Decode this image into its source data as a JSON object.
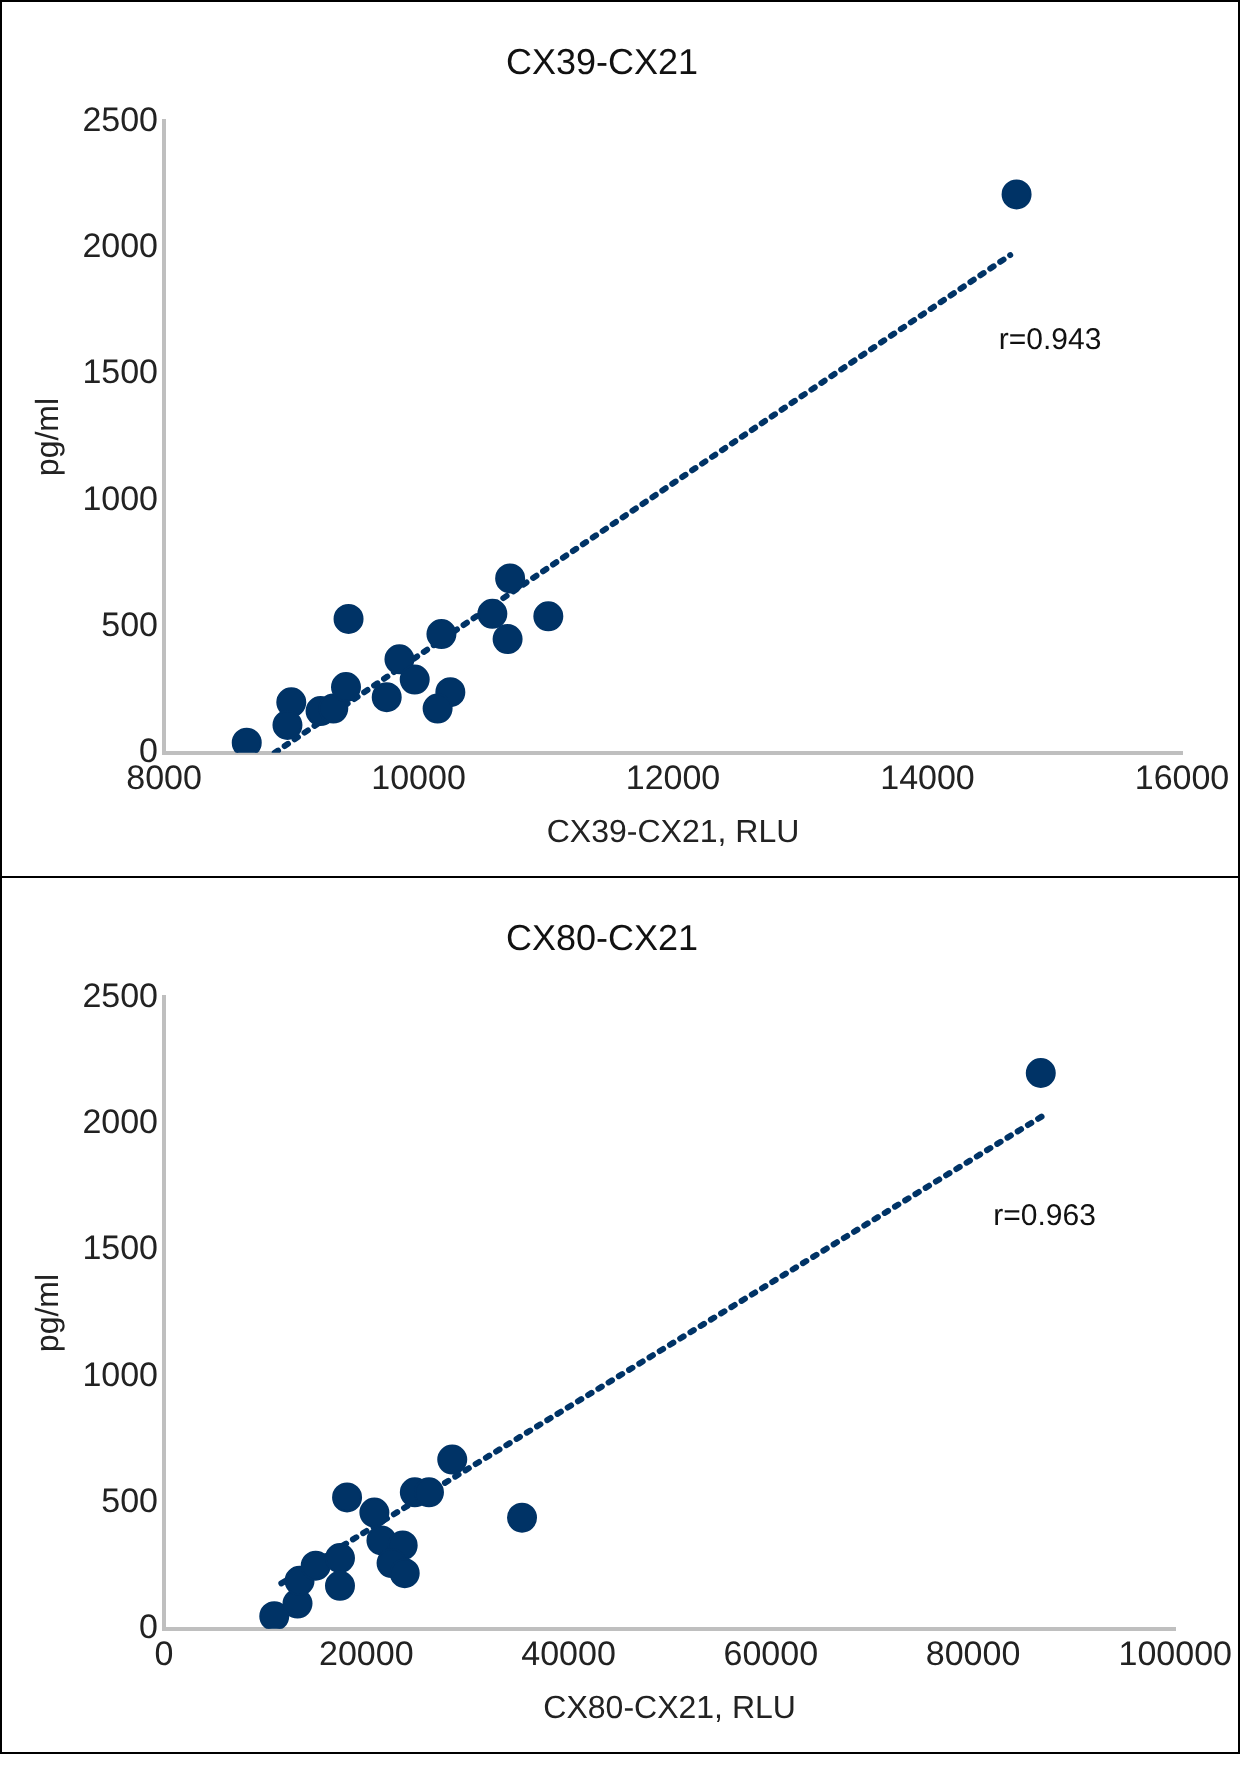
{
  "chart_data": [
    {
      "type": "scatter",
      "title": "CX39-CX21",
      "xlabel": "CX39-CX21, RLU",
      "ylabel": "pg/ml",
      "xlim": [
        8000,
        16000
      ],
      "xticks": [
        8000,
        10000,
        12000,
        14000,
        16000
      ],
      "ylim": [
        0,
        2500
      ],
      "yticks": [
        0,
        500,
        1000,
        1500,
        2000,
        2500
      ],
      "grid": false,
      "legend": false,
      "marker": "circle",
      "annotations": [
        "r=0.943"
      ],
      "series": [
        {
          "color": "#003366",
          "x": [
            8650,
            9000,
            8970,
            9230,
            9330,
            9430,
            9450,
            9800,
            9850,
            9750,
            9970,
            10180,
            10250,
            10150,
            10580,
            10720,
            10700,
            11020,
            14700
          ],
          "values": [
            40,
            200,
            110,
            165,
            175,
            260,
            530,
            null,
            370,
            220,
            290,
            470,
            240,
            175,
            550,
            690,
            450,
            540,
            2210
          ]
        },
        {
          "type": "line",
          "color": "#003366",
          "line_style": "dotted",
          "marker": "none",
          "x": [
            8870,
            14650
          ],
          "values": [
            0,
            1970
          ]
        }
      ]
    },
    {
      "type": "scatter",
      "title": "CX80-CX21",
      "xlabel": "CX80-CX21, RLU",
      "ylabel": "pg/ml",
      "xlim": [
        0,
        100000
      ],
      "xticks": [
        0,
        20000,
        40000,
        60000,
        80000,
        100000
      ],
      "ylim": [
        0,
        2500
      ],
      "yticks": [
        0,
        500,
        1000,
        1500,
        2000,
        2500
      ],
      "grid": false,
      "legend": false,
      "marker": "circle",
      "annotations": [
        "r=0.963"
      ],
      "series": [
        {
          "color": "#003366",
          "x": [
            10900,
            13200,
            13400,
            15000,
            17400,
            17400,
            18100,
            20800,
            21500,
            23600,
            22500,
            23800,
            24800,
            26200,
            28500,
            35400,
            86700
          ],
          "values": [
            50,
            100,
            190,
            250,
            280,
            170,
            520,
            460,
            350,
            330,
            260,
            220,
            540,
            540,
            670,
            440,
            2200
          ]
        },
        {
          "type": "line",
          "color": "#003366",
          "line_style": "dotted",
          "marker": "none",
          "x": [
            11600,
            87300
          ],
          "values": [
            180,
            2040
          ]
        }
      ]
    }
  ]
}
